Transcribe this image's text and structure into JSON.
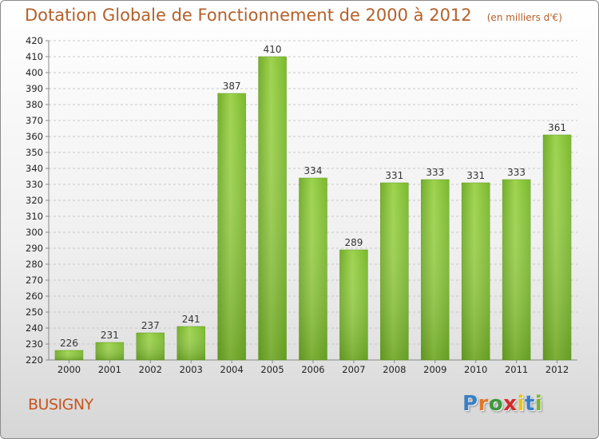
{
  "header": {
    "title": "Dotation Globale de Fonctionnement de 2000 à 2012",
    "unit": "(en milliers d'€)"
  },
  "commune": "BUSIGNY",
  "logo": {
    "letters": [
      "P",
      "r",
      "o",
      "x",
      "i",
      "t",
      "i"
    ],
    "colors": [
      "#3a7fc4",
      "#e0782a",
      "#3a9a3a",
      "#d42a2a",
      "#e8c31c",
      "#3a7fc4",
      "#7ab52a"
    ]
  },
  "chart_data": {
    "type": "bar",
    "categories": [
      "2000",
      "2001",
      "2002",
      "2003",
      "2004",
      "2005",
      "2006",
      "2007",
      "2008",
      "2009",
      "2010",
      "2011",
      "2012"
    ],
    "values": [
      226,
      231,
      237,
      241,
      387,
      410,
      334,
      289,
      331,
      333,
      331,
      333,
      361
    ],
    "ylim": [
      220,
      420
    ],
    "ytick_step": 10,
    "grid": true,
    "bar_color": "#8cc83c"
  }
}
